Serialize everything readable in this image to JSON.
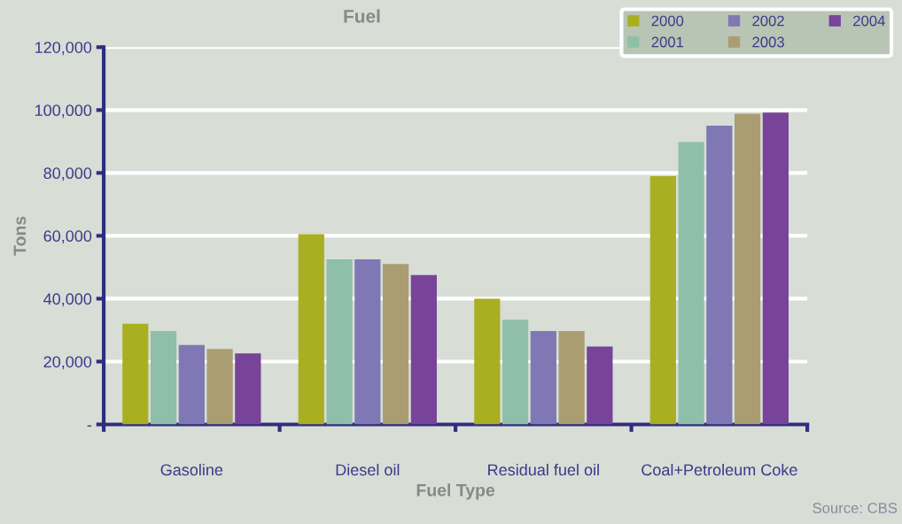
{
  "chart_data": {
    "type": "bar",
    "title": "Fuel",
    "xlabel": "Fuel Type",
    "ylabel": "Tons",
    "categories": [
      "Gasoline",
      "Diesel oil",
      "Residual fuel oil",
      "Coal+Petroleum Coke"
    ],
    "series": [
      {
        "name": "2000",
        "color": "#a8b022",
        "values": [
          32000,
          60500,
          40000,
          79000
        ]
      },
      {
        "name": "2001",
        "color": "#8fbfa8",
        "values": [
          29700,
          52500,
          33300,
          89800
        ]
      },
      {
        "name": "2002",
        "color": "#7f78b4",
        "values": [
          25300,
          52500,
          29700,
          95000
        ]
      },
      {
        "name": "2003",
        "color": "#aa9d72",
        "values": [
          24000,
          51000,
          29700,
          98800
        ]
      },
      {
        "name": "2004",
        "color": "#774499",
        "values": [
          22600,
          47500,
          24800,
          99200
        ]
      }
    ],
    "ylim": [
      0,
      120000
    ],
    "yticks": [
      {
        "value": 0,
        "label": "-"
      },
      {
        "value": 20000,
        "label": "20,000"
      },
      {
        "value": 40000,
        "label": "40,000"
      },
      {
        "value": 60000,
        "label": "60,000"
      },
      {
        "value": 80000,
        "label": "80,000"
      },
      {
        "value": 100000,
        "label": "100,000"
      },
      {
        "value": 120000,
        "label": "120,000"
      }
    ],
    "grid": "y",
    "legend": "top right",
    "annotations": [
      "Source: CBS"
    ]
  }
}
